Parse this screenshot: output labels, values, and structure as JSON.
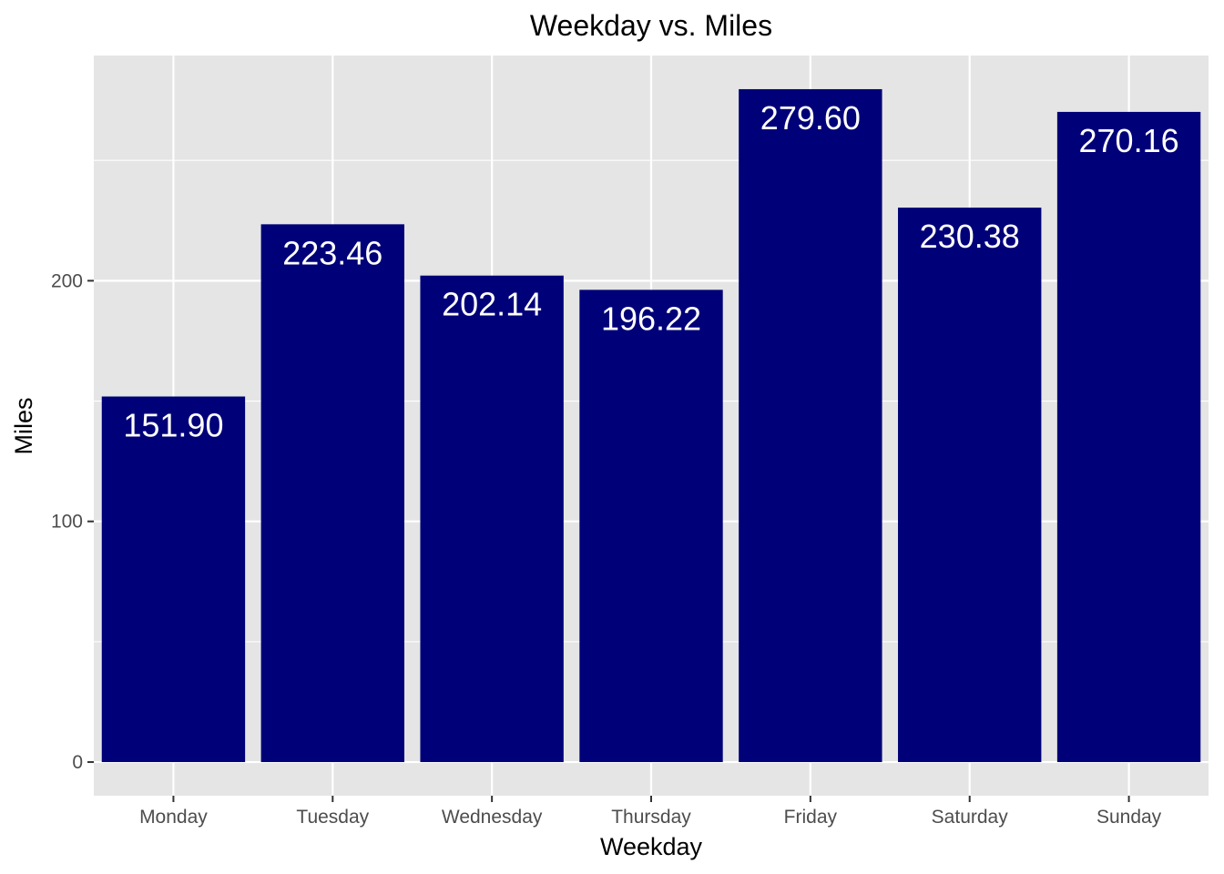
{
  "chart_data": {
    "type": "bar",
    "title": "Weekday vs. Miles",
    "xlabel": "Weekday",
    "ylabel": "Miles",
    "categories": [
      "Monday",
      "Tuesday",
      "Wednesday",
      "Thursday",
      "Friday",
      "Saturday",
      "Sunday"
    ],
    "values": [
      151.9,
      223.46,
      202.14,
      196.22,
      279.6,
      230.38,
      270.16
    ],
    "value_labels": [
      "151.90",
      "223.46",
      "202.14",
      "196.22",
      "279.60",
      "230.38",
      "270.16"
    ],
    "y_ticks": [
      0,
      100,
      200
    ],
    "ylim": [
      -13.98,
      293.58
    ],
    "grid": true,
    "legend": "none",
    "colors": {
      "bar": "#000078",
      "panel": "#e5e5e5",
      "grid": "#ffffff",
      "data_label": "#ffffff"
    }
  }
}
